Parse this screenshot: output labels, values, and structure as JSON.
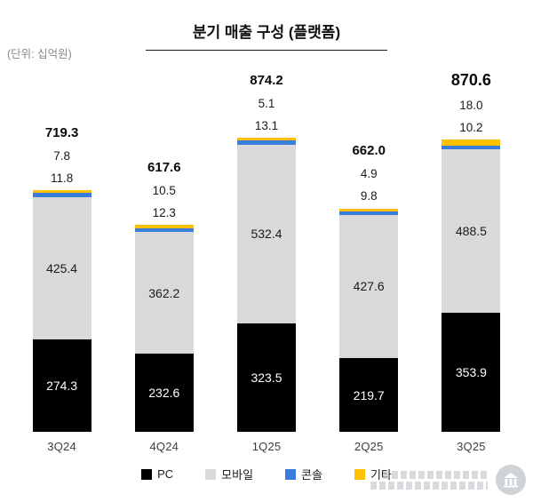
{
  "meta": {
    "unit_label": "(단위: 십억원)",
    "title": "분기 매출 구성 (플랫폼)"
  },
  "chart_data": {
    "type": "bar",
    "stacked": true,
    "title": "분기 매출 구성 (플랫폼)",
    "unit": "십억원",
    "categories": [
      "3Q24",
      "4Q24",
      "1Q25",
      "2Q25",
      "3Q25"
    ],
    "series": [
      {
        "name": "PC",
        "color": "#000000",
        "values": [
          274.3,
          232.6,
          323.5,
          219.7,
          353.9
        ]
      },
      {
        "name": "모바일",
        "color": "#d9d9d9",
        "values": [
          425.4,
          362.2,
          532.4,
          427.6,
          488.5
        ]
      },
      {
        "name": "콘솔",
        "color": "#3b7ddd",
        "values": [
          11.8,
          12.3,
          13.1,
          9.8,
          10.2
        ]
      },
      {
        "name": "기타",
        "color": "#ffc000",
        "values": [
          7.8,
          10.5,
          5.1,
          4.9,
          18.0
        ]
      }
    ],
    "totals": [
      719.3,
      617.6,
      874.2,
      662.0,
      870.6
    ],
    "legend": [
      "PC",
      "모바일",
      "콘솔",
      "기타"
    ],
    "legend_position": "bottom",
    "grid": false,
    "axes_visible": false,
    "ylim": [
      0,
      900
    ]
  }
}
